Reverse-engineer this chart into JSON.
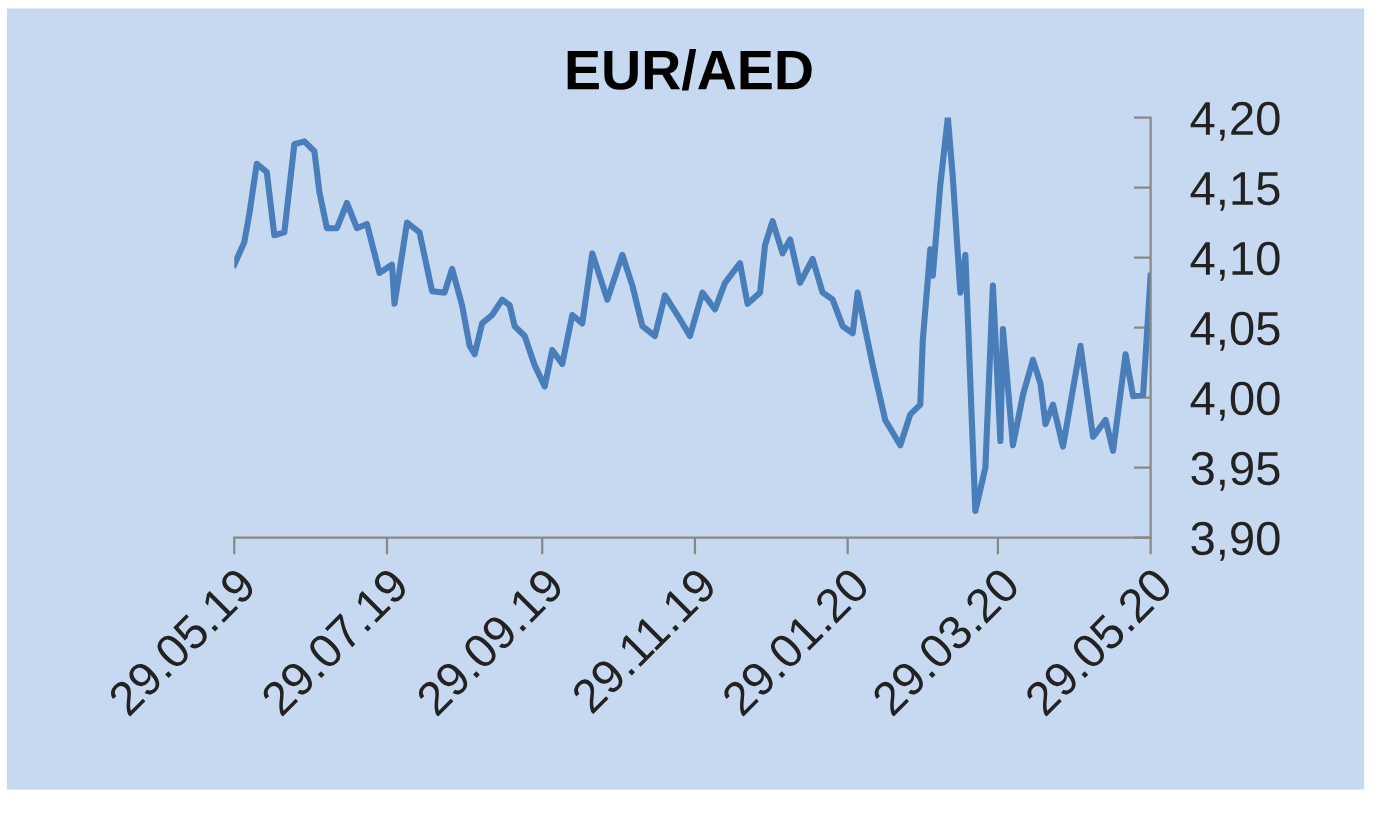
{
  "chart_data": {
    "type": "line",
    "title": "EUR/AED",
    "x": [
      "2019-05-29",
      "2019-06-02",
      "2019-06-04",
      "2019-06-07",
      "2019-06-11",
      "2019-06-14",
      "2019-06-18",
      "2019-06-22",
      "2019-06-26",
      "2019-06-30",
      "2019-07-02",
      "2019-07-05",
      "2019-07-09",
      "2019-07-13",
      "2019-07-17",
      "2019-07-21",
      "2019-07-26",
      "2019-07-31",
      "2019-08-01",
      "2019-08-06",
      "2019-08-11",
      "2019-08-16",
      "2019-08-21",
      "2019-08-24",
      "2019-08-28",
      "2019-08-31",
      "2019-09-02",
      "2019-09-05",
      "2019-09-09",
      "2019-09-13",
      "2019-09-16",
      "2019-09-18",
      "2019-09-22",
      "2019-09-26",
      "2019-09-30",
      "2019-10-03",
      "2019-10-07",
      "2019-10-11",
      "2019-10-15",
      "2019-10-19",
      "2019-10-25",
      "2019-10-31",
      "2019-11-04",
      "2019-11-08",
      "2019-11-13",
      "2019-11-17",
      "2019-11-23",
      "2019-11-27",
      "2019-12-02",
      "2019-12-07",
      "2019-12-11",
      "2019-12-17",
      "2019-12-20",
      "2019-12-25",
      "2019-12-27",
      "2019-12-30",
      "2020-01-03",
      "2020-01-06",
      "2020-01-10",
      "2020-01-15",
      "2020-01-19",
      "2020-01-23",
      "2020-01-27",
      "2020-01-31",
      "2020-02-02",
      "2020-02-08",
      "2020-02-13",
      "2020-02-19",
      "2020-02-23",
      "2020-02-27",
      "2020-02-28",
      "2020-03-02",
      "2020-03-03",
      "2020-03-06",
      "2020-03-09",
      "2020-03-11",
      "2020-03-14",
      "2020-03-16",
      "2020-03-20",
      "2020-03-24",
      "2020-03-27",
      "2020-03-30",
      "2020-03-31",
      "2020-04-04",
      "2020-04-08",
      "2020-04-12",
      "2020-04-15",
      "2020-04-17",
      "2020-04-20",
      "2020-04-24",
      "2020-05-01",
      "2020-05-06",
      "2020-05-11",
      "2020-05-14",
      "2020-05-19",
      "2020-05-22",
      "2020-05-26",
      "2020-05-29"
    ],
    "series": [
      {
        "color": "#4a7ebb",
        "values": [
          4.095,
          4.111,
          4.131,
          4.167,
          4.161,
          4.116,
          4.118,
          4.181,
          4.183,
          4.176,
          4.147,
          4.121,
          4.121,
          4.139,
          4.121,
          4.124,
          4.089,
          4.095,
          4.067,
          4.125,
          4.118,
          4.076,
          4.075,
          4.092,
          4.066,
          4.037,
          4.031,
          4.053,
          4.059,
          4.07,
          4.066,
          4.051,
          4.044,
          4.023,
          4.008,
          4.034,
          4.024,
          4.059,
          4.053,
          4.103,
          4.07,
          4.102,
          4.08,
          4.051,
          4.044,
          4.073,
          4.056,
          4.044,
          4.075,
          4.063,
          4.082,
          4.096,
          4.067,
          4.075,
          4.109,
          4.126,
          4.103,
          4.113,
          4.082,
          4.099,
          4.075,
          4.07,
          4.051,
          4.046,
          4.075,
          4.023,
          3.984,
          3.966,
          3.988,
          3.995,
          4.041,
          4.106,
          4.087,
          4.152,
          4.2,
          4.157,
          4.075,
          4.102,
          3.919,
          3.95,
          4.08,
          3.969,
          4.049,
          3.966,
          4.002,
          4.027,
          4.01,
          3.981,
          3.995,
          3.965,
          4.037,
          3.972,
          3.984,
          3.962,
          4.031,
          4.001,
          4.002,
          4.087
        ]
      }
    ],
    "xlim": [
      "2019-05-29",
      "2020-05-29"
    ],
    "xticks": [
      {
        "value": "2019-05-29",
        "label": "29.05.19"
      },
      {
        "value": "2019-07-29",
        "label": "29.07.19"
      },
      {
        "value": "2019-09-29",
        "label": "29.09.19"
      },
      {
        "value": "2019-11-29",
        "label": "29.11.19"
      },
      {
        "value": "2020-01-29",
        "label": "29.01.20"
      },
      {
        "value": "2020-03-29",
        "label": "29.03.20"
      },
      {
        "value": "2020-05-29",
        "label": "29.05.20"
      }
    ],
    "ylim": [
      3.9,
      4.2
    ],
    "yticks": [
      {
        "value": 3.9,
        "label": "3,90"
      },
      {
        "value": 3.95,
        "label": "3,95"
      },
      {
        "value": 4.0,
        "label": "4,00"
      },
      {
        "value": 4.05,
        "label": "4,05"
      },
      {
        "value": 4.1,
        "label": "4,10"
      },
      {
        "value": 4.15,
        "label": "4,15"
      },
      {
        "value": 4.2,
        "label": "4,20"
      }
    ],
    "grid": false,
    "legend": false,
    "marker": "none",
    "line_style": "solid"
  }
}
